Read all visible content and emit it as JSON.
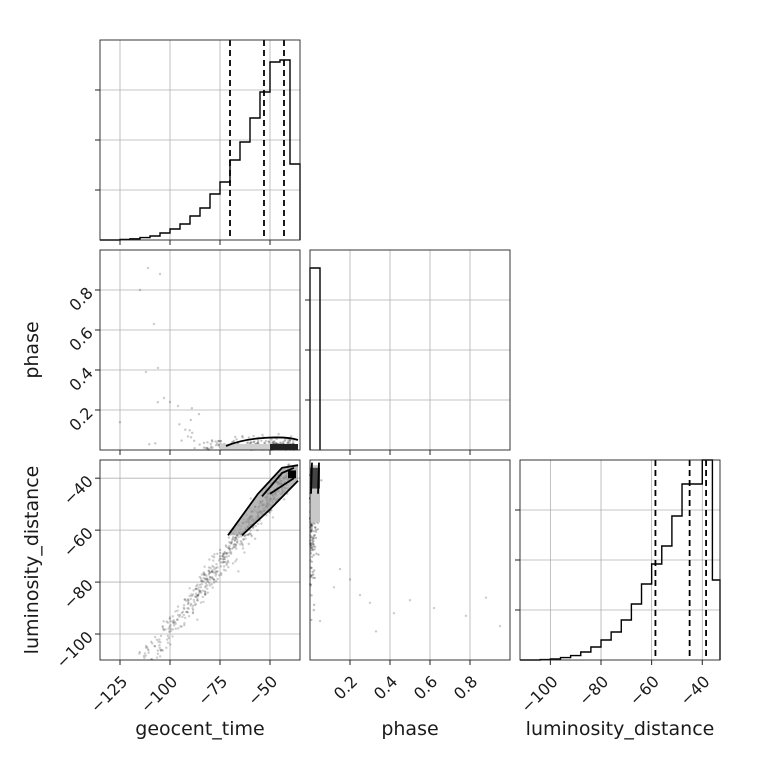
{
  "figure": {
    "parameters": [
      "geocent_time",
      "phase",
      "luminosity_distance"
    ]
  },
  "chart_data": [
    {
      "id": "hist-geocent_time",
      "type": "histogram",
      "parameter": "geocent_time",
      "xlim": [
        -135,
        -35
      ],
      "ylim": [
        0,
        1.0
      ],
      "xticks": [
        -125,
        -100,
        -75,
        -50
      ],
      "bins": [
        -135,
        -130,
        -125,
        -120,
        -115,
        -110,
        -105,
        -100,
        -95,
        -90,
        -85,
        -80,
        -75,
        -70,
        -65,
        -60,
        -55,
        -50,
        -45,
        -40,
        -35
      ],
      "densities": [
        0,
        0,
        0.003,
        0.006,
        0.012,
        0.02,
        0.035,
        0.055,
        0.08,
        0.12,
        0.16,
        0.23,
        0.29,
        0.4,
        0.49,
        0.61,
        0.74,
        0.89,
        0.9,
        0.38
      ],
      "quantiles": [
        -70,
        -53,
        -43
      ],
      "grid": true,
      "show_x_ticklabels": false
    },
    {
      "id": "scatter-phase-vs-geocent_time",
      "type": "scatter",
      "x_parameter": "geocent_time",
      "y_parameter": "phase",
      "xlim": [
        -135,
        -35
      ],
      "ylim": [
        0,
        1.0
      ],
      "yticks": [
        0.2,
        0.4,
        0.6,
        0.8
      ],
      "grid": true,
      "show_x_ticklabels": false
    },
    {
      "id": "hist-phase",
      "type": "histogram",
      "parameter": "phase",
      "xlim": [
        0,
        1.0
      ],
      "ylim": [
        0,
        1.0
      ],
      "bins": [
        0,
        0.05
      ],
      "densities": [
        0.91
      ],
      "grid": true,
      "show_x_ticklabels": false
    },
    {
      "id": "scatter-ld-vs-geocent_time",
      "type": "scatter",
      "x_parameter": "geocent_time",
      "y_parameter": "luminosity_distance",
      "xlim": [
        -135,
        -35
      ],
      "ylim": [
        -110,
        -33
      ],
      "xticks": [
        -125,
        -100,
        -75,
        -50
      ],
      "yticks": [
        -40,
        -60,
        -80,
        -100
      ],
      "grid": true
    },
    {
      "id": "scatter-ld-vs-phase",
      "type": "scatter",
      "x_parameter": "phase",
      "y_parameter": "luminosity_distance",
      "xlim": [
        0,
        1.0
      ],
      "ylim": [
        -110,
        -33
      ],
      "xticks": [
        0.2,
        0.4,
        0.6,
        0.8
      ],
      "grid": true
    },
    {
      "id": "hist-luminosity_distance",
      "type": "histogram",
      "parameter": "luminosity_distance",
      "xlim": [
        -112,
        -33
      ],
      "ylim": [
        0,
        1.0
      ],
      "xticks": [
        -100,
        -80,
        -60,
        -40
      ],
      "bins": [
        -112,
        -108,
        -104,
        -100,
        -96,
        -92,
        -88,
        -84,
        -80,
        -76,
        -72,
        -68,
        -64,
        -60,
        -56,
        -52,
        -48,
        -44,
        -40,
        -36,
        -33
      ],
      "densities": [
        0,
        0,
        0.002,
        0.005,
        0.012,
        0.022,
        0.04,
        0.065,
        0.1,
        0.14,
        0.2,
        0.28,
        0.38,
        0.48,
        0.57,
        0.72,
        0.88,
        0.88,
        1.0,
        0.4
      ],
      "quantiles": [
        -58.5,
        -45,
        -38.5
      ],
      "grid": true
    }
  ]
}
